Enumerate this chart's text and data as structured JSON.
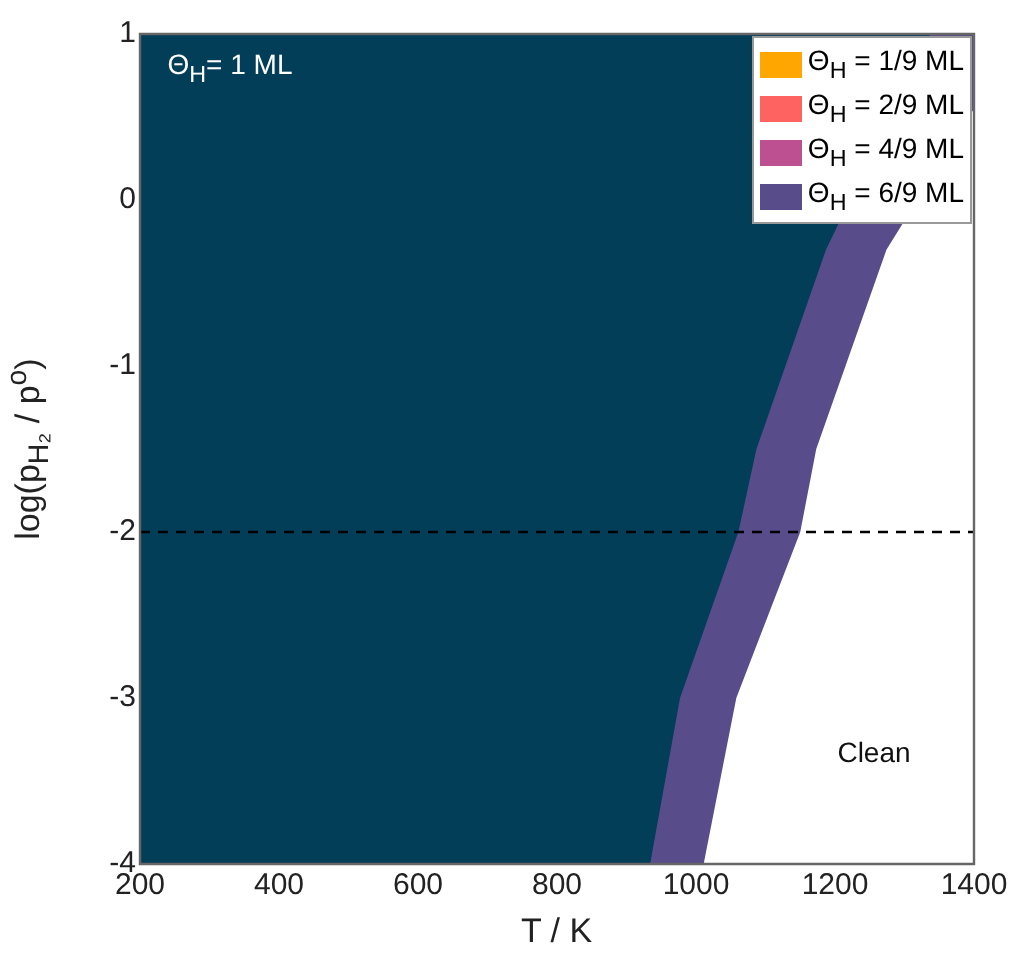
{
  "chart_data": {
    "type": "area",
    "xlabel": "T / K",
    "ylabel": "log(p$_{H₂}$ / p$^{o}$)",
    "xlim": [
      200,
      1400
    ],
    "ylim": [
      -4,
      1
    ],
    "xticks": [
      200,
      400,
      600,
      800,
      1000,
      1200,
      1400
    ],
    "yticks": [
      -4,
      -3,
      -2,
      -1,
      0,
      1
    ],
    "legend": "top right",
    "marker": "none",
    "series": [
      {
        "name": "Θ$_{H}$ = 1/9 ML",
        "color": "#ffa600"
      },
      {
        "name": "Θ$_{H}$ = 2/9 ML",
        "color": "#ff6361"
      },
      {
        "name": "Θ$_{H}$ = 4/9 ML",
        "color": "#bc5090"
      },
      {
        "name": "Θ$_{H}$ = 6/9 ML",
        "color": "#584d8a",
        "x": [
          200,
          200,
          1011,
          1058,
          1150,
          1173,
          1274,
          1400,
          1400
        ],
        "values": [
          1,
          -4,
          -4,
          -3,
          -2,
          -1.5,
          -0.3,
          0.55,
          1
        ]
      },
      {
        "color": "#023e58",
        "x": [
          200,
          200,
          934,
          977,
          1061,
          1087,
          1187,
          1270,
          1337
        ],
        "values": [
          1,
          -4,
          -4,
          -3,
          -2,
          -1.5,
          -0.3,
          null,
          1
        ]
      }
    ],
    "ref_lines": [
      {
        "axis": "y",
        "value": -2,
        "color": "#000000",
        "line_style": "dashed"
      }
    ],
    "annotations": [
      "Θ$_{H}$= 1 ML",
      "Clean"
    ]
  }
}
